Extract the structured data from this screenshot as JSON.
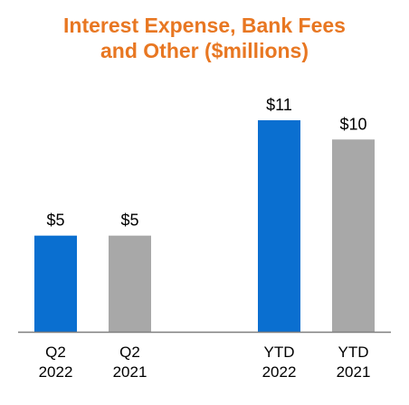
{
  "chart_data": {
    "type": "bar",
    "title_lines": [
      "Interest Expense, Bank Fees",
      "and Other ($millions)"
    ],
    "categories": [
      [
        "Q2",
        "2022"
      ],
      [
        "Q2",
        "2021"
      ],
      [
        "YTD",
        "2022"
      ],
      [
        "YTD",
        "2021"
      ]
    ],
    "values": [
      5,
      5,
      11,
      10
    ],
    "data_labels": [
      "$5",
      "$5",
      "$11",
      "$10"
    ],
    "bar_colors": [
      "#0A6FD0",
      "#A8A8A8",
      "#0A6FD0",
      "#A8A8A8"
    ],
    "ylim": [
      0,
      11
    ],
    "grid": false,
    "xlabel": "",
    "ylabel": ""
  },
  "colors": {
    "title": "#E87722",
    "axis": "#7F7F7F"
  }
}
